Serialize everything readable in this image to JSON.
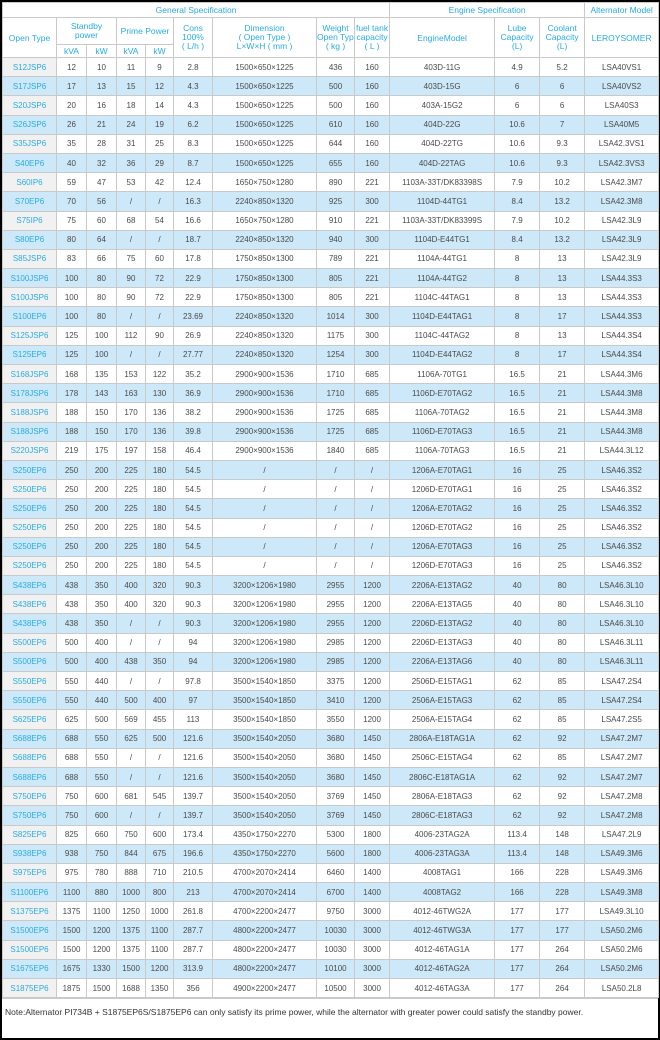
{
  "header": {
    "group_general": "General Specification",
    "group_engine": "Engine Specification",
    "group_alternator": "Alternator Model",
    "open_type": "Open Type",
    "standby_lines": [
      "Standby",
      "power"
    ],
    "prime_power": "Prime Power",
    "kva": "kVA",
    "kw": "kW",
    "cons_lines": [
      "Cons",
      "100%",
      "( L/h )"
    ],
    "dimension_lines": [
      "Dimension",
      "( Open Type )",
      "L×W×H ( mm )"
    ],
    "weight_lines": [
      "Weight",
      "Open Type",
      "( kg )"
    ],
    "fuel_lines": [
      "fuel tank",
      "capacity",
      "( L )"
    ],
    "engine_model": "EngineModel",
    "lube_lines": [
      "Lube",
      "Capacity",
      "(L)"
    ],
    "coolant_lines": [
      "Coolant",
      "Capacity",
      "(L)"
    ],
    "leroysomer": "LEROYSOMER"
  },
  "columns_keys": [
    "open_type",
    "standby_kva",
    "standby_kw",
    "prime_kva",
    "prime_kw",
    "cons",
    "dimension",
    "weight",
    "fuel_tank",
    "engine_model",
    "lube_capacity",
    "coolant_capacity",
    "alternator"
  ],
  "rows": [
    [
      "S12JSP6",
      "12",
      "10",
      "11",
      "9",
      "2.8",
      "1500×650×1225",
      "436",
      "160",
      "403D-11G",
      "4.9",
      "5.2",
      "LSA40VS1"
    ],
    [
      "S17JSP6",
      "17",
      "13",
      "15",
      "12",
      "4.3",
      "1500×650×1225",
      "500",
      "160",
      "403D-15G",
      "6",
      "6",
      "LSA40VS2"
    ],
    [
      "S20JSP6",
      "20",
      "16",
      "18",
      "14",
      "4.3",
      "1500×650×1225",
      "500",
      "160",
      "403A-15G2",
      "6",
      "6",
      "LSA40S3"
    ],
    [
      "S26JSP6",
      "26",
      "21",
      "24",
      "19",
      "6.2",
      "1500×650×1225",
      "610",
      "160",
      "404D-22G",
      "10.6",
      "7",
      "LSA40M5"
    ],
    [
      "S35JSP6",
      "35",
      "28",
      "31",
      "25",
      "8.3",
      "1500×650×1225",
      "644",
      "160",
      "404D-22TG",
      "10.6",
      "9.3",
      "LSA42.3VS1"
    ],
    [
      "S40EP6",
      "40",
      "32",
      "36",
      "29",
      "8.7",
      "1500×650×1225",
      "655",
      "160",
      "404D-22TAG",
      "10.6",
      "9.3",
      "LSA42.3VS3"
    ],
    [
      "S60IP6",
      "59",
      "47",
      "53",
      "42",
      "12.4",
      "1650×750×1280",
      "890",
      "221",
      "1103A-33T/DK83398S",
      "7.9",
      "10.2",
      "LSA42.3M7"
    ],
    [
      "S70EP6",
      "70",
      "56",
      "/",
      "/",
      "16.3",
      "2240×850×1320",
      "925",
      "300",
      "1104D-44TG1",
      "8.4",
      "13.2",
      "LSA42.3M8"
    ],
    [
      "S75IP6",
      "75",
      "60",
      "68",
      "54",
      "16.6",
      "1650×750×1280",
      "910",
      "221",
      "1103A-33T/DK83399S",
      "7.9",
      "10.2",
      "LSA42.3L9"
    ],
    [
      "S80EP6",
      "80",
      "64",
      "/",
      "/",
      "18.7",
      "2240×850×1320",
      "940",
      "300",
      "1104D-E44TG1",
      "8.4",
      "13.2",
      "LSA42.3L9"
    ],
    [
      "S85JSP6",
      "83",
      "66",
      "75",
      "60",
      "17.8",
      "1750×850×1300",
      "789",
      "221",
      "1104A-44TG1",
      "8",
      "13",
      "LSA42.3L9"
    ],
    [
      "S100JSP6",
      "100",
      "80",
      "90",
      "72",
      "22.9",
      "1750×850×1300",
      "805",
      "221",
      "1104A-44TG2",
      "8",
      "13",
      "LSA44.3S3"
    ],
    [
      "S100JSP6",
      "100",
      "80",
      "90",
      "72",
      "22.9",
      "1750×850×1300",
      "805",
      "221",
      "1104C-44TAG1",
      "8",
      "13",
      "LSA44.3S3"
    ],
    [
      "S100EP6",
      "100",
      "80",
      "/",
      "/",
      "23.69",
      "2240×850×1320",
      "1014",
      "300",
      "1104D-E44TAG1",
      "8",
      "17",
      "LSA44.3S3"
    ],
    [
      "S125JSP6",
      "125",
      "100",
      "112",
      "90",
      "26.9",
      "2240×850×1320",
      "1175",
      "300",
      "1104C-44TAG2",
      "8",
      "13",
      "LSA44.3S4"
    ],
    [
      "S125EP6",
      "125",
      "100",
      "/",
      "/",
      "27.77",
      "2240×850×1320",
      "1254",
      "300",
      "1104D-E44TAG2",
      "8",
      "17",
      "LSA44.3S4"
    ],
    [
      "S168JSP6",
      "168",
      "135",
      "153",
      "122",
      "35.2",
      "2900×900×1536",
      "1710",
      "685",
      "1106A-70TG1",
      "16.5",
      "21",
      "LSA44.3M6"
    ],
    [
      "S178JSP6",
      "178",
      "143",
      "163",
      "130",
      "36.9",
      "2900×900×1536",
      "1710",
      "685",
      "1106D-E70TAG2",
      "16.5",
      "21",
      "LSA44.3M8"
    ],
    [
      "S188JSP6",
      "188",
      "150",
      "170",
      "136",
      "38.2",
      "2900×900×1536",
      "1725",
      "685",
      "1106A-70TAG2",
      "16.5",
      "21",
      "LSA44.3M8"
    ],
    [
      "S188JSP6",
      "188",
      "150",
      "170",
      "136",
      "39.8",
      "2900×900×1536",
      "1725",
      "685",
      "1106D-E70TAG3",
      "16.5",
      "21",
      "LSA44.3M8"
    ],
    [
      "S220JSP6",
      "219",
      "175",
      "197",
      "158",
      "46.4",
      "2900×900×1536",
      "1840",
      "685",
      "1106A-70TAG3",
      "16.5",
      "21",
      "LSA44.3L12"
    ],
    [
      "S250EP6",
      "250",
      "200",
      "225",
      "180",
      "54.5",
      "/",
      "/",
      "/",
      "1206A-E70TAG1",
      "16",
      "25",
      "LSA46.3S2"
    ],
    [
      "S250EP6",
      "250",
      "200",
      "225",
      "180",
      "54.5",
      "/",
      "/",
      "/",
      "1206D-E70TAG1",
      "16",
      "25",
      "LSA46.3S2"
    ],
    [
      "S250EP6",
      "250",
      "200",
      "225",
      "180",
      "54.5",
      "/",
      "/",
      "/",
      "1206A-E70TAG2",
      "16",
      "25",
      "LSA46.3S2"
    ],
    [
      "S250EP6",
      "250",
      "200",
      "225",
      "180",
      "54.5",
      "/",
      "/",
      "/",
      "1206D-E70TAG2",
      "16",
      "25",
      "LSA46.3S2"
    ],
    [
      "S250EP6",
      "250",
      "200",
      "225",
      "180",
      "54.5",
      "/",
      "/",
      "/",
      "1206A-E70TAG3",
      "16",
      "25",
      "LSA46.3S2"
    ],
    [
      "S250EP6",
      "250",
      "200",
      "225",
      "180",
      "54.5",
      "/",
      "/",
      "/",
      "1206D-E70TAG3",
      "16",
      "25",
      "LSA46.3S2"
    ],
    [
      "S438EP6",
      "438",
      "350",
      "400",
      "320",
      "90.3",
      "3200×1206×1980",
      "2955",
      "1200",
      "2206A-E13TAG2",
      "40",
      "80",
      "LSA46.3L10"
    ],
    [
      "S438EP6",
      "438",
      "350",
      "400",
      "320",
      "90.3",
      "3200×1206×1980",
      "2955",
      "1200",
      "2206A-E13TAG5",
      "40",
      "80",
      "LSA46.3L10"
    ],
    [
      "S438EP6",
      "438",
      "350",
      "/",
      "/",
      "90.3",
      "3200×1206×1980",
      "2955",
      "1200",
      "2206D-E13TAG2",
      "40",
      "80",
      "LSA46.3L10"
    ],
    [
      "S500EP6",
      "500",
      "400",
      "/",
      "/",
      "94",
      "3200×1206×1980",
      "2985",
      "1200",
      "2206D-E13TAG3",
      "40",
      "80",
      "LSA46.3L11"
    ],
    [
      "S500EP6",
      "500",
      "400",
      "438",
      "350",
      "94",
      "3200×1206×1980",
      "2985",
      "1200",
      "2206A-E13TAG6",
      "40",
      "80",
      "LSA46.3L11"
    ],
    [
      "S550EP6",
      "550",
      "440",
      "/",
      "/",
      "97.8",
      "3500×1540×1850",
      "3375",
      "1200",
      "2506D-E15TAG1",
      "62",
      "85",
      "LSA47.2S4"
    ],
    [
      "S550EP6",
      "550",
      "440",
      "500",
      "400",
      "97",
      "3500×1540×1850",
      "3410",
      "1200",
      "2506A-E15TAG3",
      "62",
      "85",
      "LSA47.2S4"
    ],
    [
      "S625EP6",
      "625",
      "500",
      "569",
      "455",
      "113",
      "3500×1540×1850",
      "3550",
      "1200",
      "2506A-E15TAG4",
      "62",
      "85",
      "LSA47.2S5"
    ],
    [
      "S688EP6",
      "688",
      "550",
      "625",
      "500",
      "121.6",
      "3500×1540×2050",
      "3680",
      "1450",
      "2806A-E18TAG1A",
      "62",
      "92",
      "LSA47.2M7"
    ],
    [
      "S688EP6",
      "688",
      "550",
      "/",
      "/",
      "121.6",
      "3500×1540×2050",
      "3680",
      "1450",
      "2506C-E15TAG4",
      "62",
      "85",
      "LSA47.2M7"
    ],
    [
      "S688EP6",
      "688",
      "550",
      "/",
      "/",
      "121.6",
      "3500×1540×2050",
      "3680",
      "1450",
      "2806C-E18TAG1A",
      "62",
      "92",
      "LSA47.2M7"
    ],
    [
      "S750EP6",
      "750",
      "600",
      "681",
      "545",
      "139.7",
      "3500×1540×2050",
      "3769",
      "1450",
      "2806A-E18TAG3",
      "62",
      "92",
      "LSA47.2M8"
    ],
    [
      "S750EP6",
      "750",
      "600",
      "/",
      "/",
      "139.7",
      "3500×1540×2050",
      "3769",
      "1450",
      "2806C-E18TAG3",
      "62",
      "92",
      "LSA47.2M8"
    ],
    [
      "S825EP6",
      "825",
      "660",
      "750",
      "600",
      "173.4",
      "4350×1750×2270",
      "5300",
      "1800",
      "4006-23TAG2A",
      "113.4",
      "148",
      "LSA47.2L9"
    ],
    [
      "S938EP6",
      "938",
      "750",
      "844",
      "675",
      "196.6",
      "4350×1750×2270",
      "5600",
      "1800",
      "4006-23TAG3A",
      "113.4",
      "148",
      "LSA49.3M6"
    ],
    [
      "S975EP6",
      "975",
      "780",
      "888",
      "710",
      "210.5",
      "4700×2070×2414",
      "6460",
      "1400",
      "4008TAG1",
      "166",
      "228",
      "LSA49.3M6"
    ],
    [
      "S1100EP6",
      "1100",
      "880",
      "1000",
      "800",
      "213",
      "4700×2070×2414",
      "6700",
      "1400",
      "4008TAG2",
      "166",
      "228",
      "LSA49.3M8"
    ],
    [
      "S1375EP6",
      "1375",
      "1100",
      "1250",
      "1000",
      "261.8",
      "4700×2200×2477",
      "9750",
      "3000",
      "4012-46TWG2A",
      "177",
      "177",
      "LSA49.3L10"
    ],
    [
      "S1500EP6",
      "1500",
      "1200",
      "1375",
      "1100",
      "287.7",
      "4800×2200×2477",
      "10030",
      "3000",
      "4012-46TWG3A",
      "177",
      "177",
      "LSA50.2M6"
    ],
    [
      "S1500EP6",
      "1500",
      "1200",
      "1375",
      "1100",
      "287.7",
      "4800×2200×2477",
      "10030",
      "3000",
      "4012-46TAG1A",
      "177",
      "264",
      "LSA50.2M6"
    ],
    [
      "S1675EP6",
      "1675",
      "1330",
      "1500",
      "1200",
      "313.9",
      "4800×2200×2477",
      "10100",
      "3000",
      "4012-46TAG2A",
      "177",
      "264",
      "LSA50.2M6"
    ],
    [
      "S1875EP6",
      "1875",
      "1500",
      "1688",
      "1350",
      "356",
      "4900×2200×2477",
      "10500",
      "3000",
      "4012-46TAG3A",
      "177",
      "264",
      "LSA50.2L8"
    ]
  ],
  "note": "Note:Alternator PI734B + S1875EP6S/S1875EP6 can only satisfy its prime power, while the alternator with greater power could satisfy the standby power.",
  "colors": {
    "accent_text": "#29abe2",
    "alt_row_bg": "#cde9f9",
    "first_col_bg": "#f1f1f1",
    "grid_line": "#c9c9c9",
    "outer_border": "#000000"
  }
}
